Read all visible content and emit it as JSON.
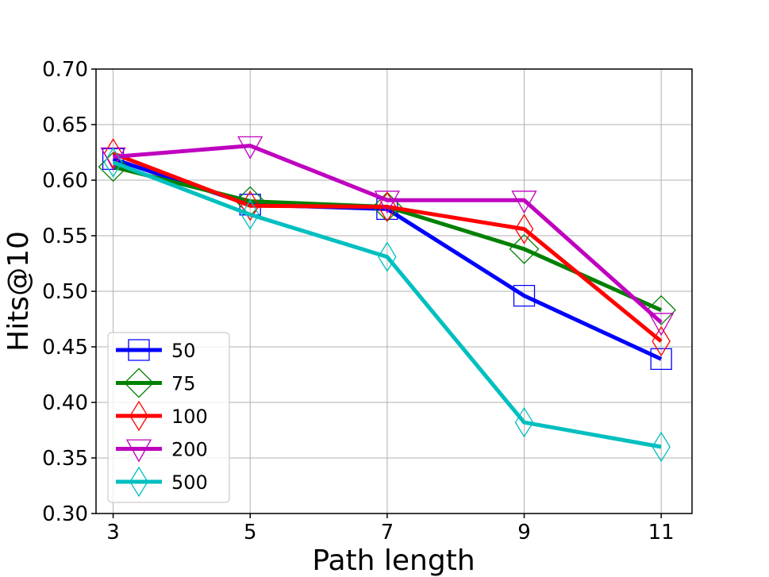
{
  "chart_data": {
    "type": "line",
    "xlabel": "Path length",
    "ylabel": "Hits@10",
    "x": [
      3,
      5,
      7,
      9,
      11
    ],
    "xticks": [
      "3",
      "5",
      "7",
      "9",
      "11"
    ],
    "ylim": [
      0.3,
      0.7
    ],
    "yticks": [
      "0.30",
      "0.35",
      "0.40",
      "0.45",
      "0.50",
      "0.55",
      "0.60",
      "0.65",
      "0.70"
    ],
    "grid": true,
    "legend": "lower-left",
    "series": [
      {
        "name": "50",
        "color": "#0000ff",
        "marker": "square",
        "values": [
          0.619,
          0.578,
          0.574,
          0.496,
          0.439
        ]
      },
      {
        "name": "75",
        "color": "#008000",
        "marker": "diamond",
        "values": [
          0.612,
          0.581,
          0.576,
          0.538,
          0.483
        ]
      },
      {
        "name": "100",
        "color": "#ff0000",
        "marker": "thin-diamond",
        "values": [
          0.624,
          0.577,
          0.576,
          0.556,
          0.455
        ]
      },
      {
        "name": "200",
        "color": "#bf00bf",
        "marker": "triangle-down",
        "values": [
          0.621,
          0.631,
          0.582,
          0.582,
          0.472
        ]
      },
      {
        "name": "500",
        "color": "#00bfbf",
        "marker": "thin-diamond",
        "values": [
          0.616,
          0.569,
          0.531,
          0.382,
          0.36
        ]
      }
    ]
  }
}
